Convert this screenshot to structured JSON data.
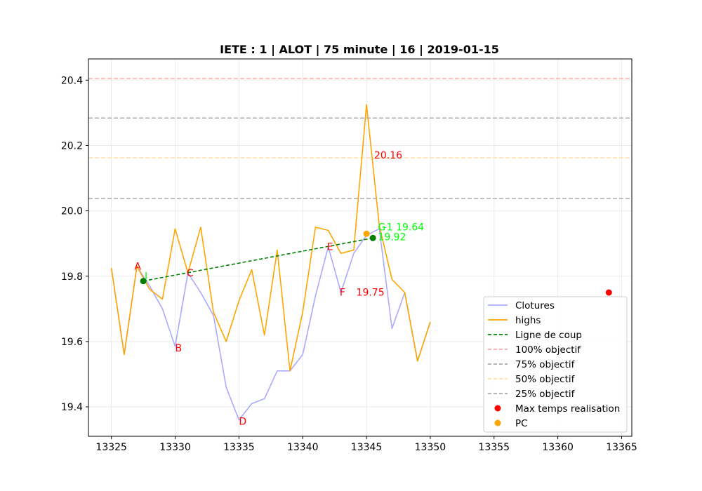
{
  "chart_data": {
    "type": "line",
    "title": "IETE : 1 | ALOT | 75 minute | 16 | 2019-01-15",
    "xlim": [
      13323.2,
      13365.8
    ],
    "ylim": [
      19.31,
      20.465
    ],
    "x_ticks": [
      13325,
      13330,
      13335,
      13340,
      13345,
      13350,
      13355,
      13360,
      13365
    ],
    "y_ticks": [
      19.4,
      19.6,
      19.8,
      20.0,
      20.2,
      20.4
    ],
    "y_tick_labels": [
      "19.4",
      "19.6",
      "19.8",
      "20.0",
      "20.2",
      "20.4"
    ],
    "grid": true,
    "legend_position": "lower right",
    "series": [
      {
        "name": "Clotures",
        "style": "line",
        "color": "#aaaaff",
        "x": [
          13325,
          13326,
          13327,
          13328,
          13329,
          13330,
          13331,
          13332,
          13333,
          13334,
          13335,
          13336,
          13337,
          13338,
          13339,
          13340,
          13341,
          13342,
          13343,
          13344,
          13345,
          13346,
          13347,
          13348,
          13349,
          13350
        ],
        "y": [
          19.825,
          19.56,
          19.83,
          19.77,
          19.7,
          19.585,
          19.81,
          19.75,
          19.68,
          19.46,
          19.36,
          19.41,
          19.425,
          19.51,
          19.51,
          19.56,
          19.74,
          19.89,
          19.75,
          19.87,
          19.925,
          19.945,
          19.64,
          19.75,
          19.54,
          19.66
        ]
      },
      {
        "name": "highs",
        "style": "line",
        "color": "#ffa500",
        "x": [
          13325,
          13326,
          13327,
          13328,
          13329,
          13330,
          13331,
          13332,
          13333,
          13334,
          13335,
          13336,
          13337,
          13338,
          13339,
          13340,
          13341,
          13342,
          13343,
          13344,
          13345,
          13346,
          13347,
          13348,
          13349,
          13350
        ],
        "y": [
          19.825,
          19.56,
          19.83,
          19.76,
          19.73,
          19.945,
          19.81,
          19.95,
          19.69,
          19.6,
          19.725,
          19.82,
          19.62,
          19.88,
          19.51,
          19.69,
          19.95,
          19.94,
          19.87,
          19.88,
          20.325,
          19.955,
          19.79,
          19.75,
          19.54,
          19.66
        ]
      },
      {
        "name": "Ligne de coup",
        "style": "dashed",
        "color": "#008000",
        "x": [
          13327.5,
          13345.5
        ],
        "y": [
          19.785,
          19.917
        ]
      }
    ],
    "hlines": [
      {
        "name": "100% objectif",
        "y": 20.405,
        "color": "#ffaaaa"
      },
      {
        "name": "75% objectif",
        "y": 20.284,
        "color": "#aaaaaa"
      },
      {
        "name": "50% objectif",
        "y": 20.162,
        "color": "#ffe0a8"
      },
      {
        "name": "25% objectif",
        "y": 20.038,
        "color": "#aaaaaa"
      }
    ],
    "points": [
      {
        "name": "Max temps realisation",
        "x": 13364,
        "y": 19.75,
        "color": "#ff0000"
      },
      {
        "name": "PC",
        "x": 13345,
        "y": 19.93,
        "color": "#ffa500"
      },
      {
        "name": "",
        "x": 13327.5,
        "y": 19.785,
        "color": "#008000"
      },
      {
        "name": "",
        "x": 13345.5,
        "y": 19.917,
        "color": "#008000"
      }
    ],
    "annotations": [
      {
        "text": "A",
        "x": 13326.8,
        "y": 19.82,
        "color": "#ff0000"
      },
      {
        "text": "B",
        "x": 13330.0,
        "y": 19.57,
        "color": "#ff0000"
      },
      {
        "text": "C",
        "x": 13330.9,
        "y": 19.8,
        "color": "#ff0000"
      },
      {
        "text": "D",
        "x": 13335.0,
        "y": 19.345,
        "color": "#ff0000"
      },
      {
        "text": "E",
        "x": 13341.9,
        "y": 19.88,
        "color": "#ff0000"
      },
      {
        "text": "F",
        "x": 13342.9,
        "y": 19.74,
        "color": "#ff0000"
      },
      {
        "text": "19.75",
        "x": 13344.2,
        "y": 19.74,
        "color": "#ff0000"
      },
      {
        "text": "20.16",
        "x": 13345.6,
        "y": 20.16,
        "color": "#ff0000"
      },
      {
        "text": "G",
        "x": 13345.9,
        "y": 19.94,
        "color": "#00ff00"
      },
      {
        "text": "-1 19.64",
        "x": 13346.3,
        "y": 19.94,
        "color": "#00ff00"
      },
      {
        "text": "19.92",
        "x": 13345.9,
        "y": 19.91,
        "color": "#00ff00"
      },
      {
        "text": "I",
        "x": 13327.6,
        "y": 19.79,
        "color": "#00ff00"
      }
    ],
    "legend": [
      {
        "label": "Clotures",
        "kind": "line",
        "color": "#aaaaff"
      },
      {
        "label": "highs",
        "kind": "line",
        "color": "#ffa500"
      },
      {
        "label": "Ligne de coup",
        "kind": "dashed",
        "color": "#008000"
      },
      {
        "label": "100% objectif",
        "kind": "dashed",
        "color": "#ffaaaa"
      },
      {
        "label": "75% objectif",
        "kind": "dashed",
        "color": "#aaaaaa"
      },
      {
        "label": "50% objectif",
        "kind": "dashed",
        "color": "#ffe0a8"
      },
      {
        "label": "25% objectif",
        "kind": "dashed",
        "color": "#aaaaaa"
      },
      {
        "label": "Max temps realisation",
        "kind": "dot",
        "color": "#ff0000"
      },
      {
        "label": "PC",
        "kind": "dot",
        "color": "#ffa500"
      }
    ]
  }
}
